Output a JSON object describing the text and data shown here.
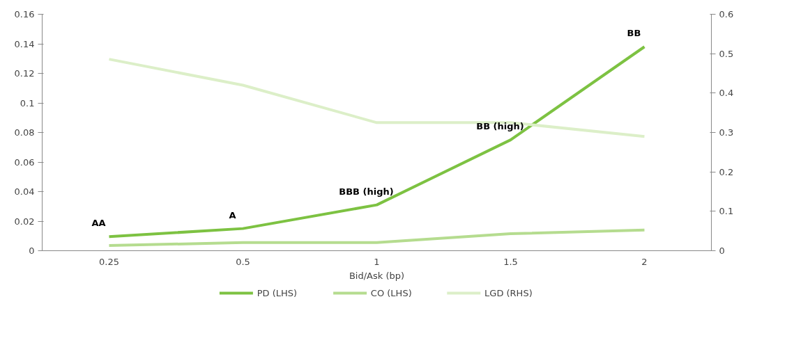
{
  "chart_data": {
    "type": "line",
    "xlabel": "Bid/Ask (bp)",
    "categories": [
      "0.25",
      "0.5",
      "1",
      "1.5",
      "2"
    ],
    "series": [
      {
        "name": "PD (LHS)",
        "color": "#7dc242",
        "values": [
          0.0095,
          0.015,
          0.031,
          0.075,
          0.138
        ]
      },
      {
        "name": "CO (LHS)",
        "color": "#b5dc8f",
        "values": [
          0.0035,
          0.0055,
          0.0055,
          0.0115,
          0.014
        ]
      },
      {
        "name": "LGD (RHS)",
        "color": "#dcefc8",
        "axis": "y2",
        "values": [
          0.486,
          0.42,
          0.325,
          0.325,
          0.29
        ]
      }
    ],
    "ylim": [
      0,
      0.16
    ],
    "yticks": [
      0,
      0.02,
      0.04,
      0.06,
      0.08,
      0.1,
      0.12,
      0.14,
      0.16
    ],
    "y2lim": [
      0,
      0.6
    ],
    "y2ticks": [
      0,
      0.1,
      0.2,
      0.3,
      0.4,
      0.5,
      0.6
    ],
    "annotations": [
      {
        "text": "AA",
        "x": "0.25",
        "y": 0.0095
      },
      {
        "text": "A",
        "x": "0.5",
        "y": 0.015
      },
      {
        "text": "BBB (high)",
        "x": "1",
        "y": 0.031
      },
      {
        "text": "BB (high)",
        "x": "1.5",
        "y": 0.075
      },
      {
        "text": "BB",
        "x": "2",
        "y": 0.138
      }
    ],
    "grid": false,
    "legend": "bottom",
    "marker": "none",
    "line_style": "solid"
  }
}
